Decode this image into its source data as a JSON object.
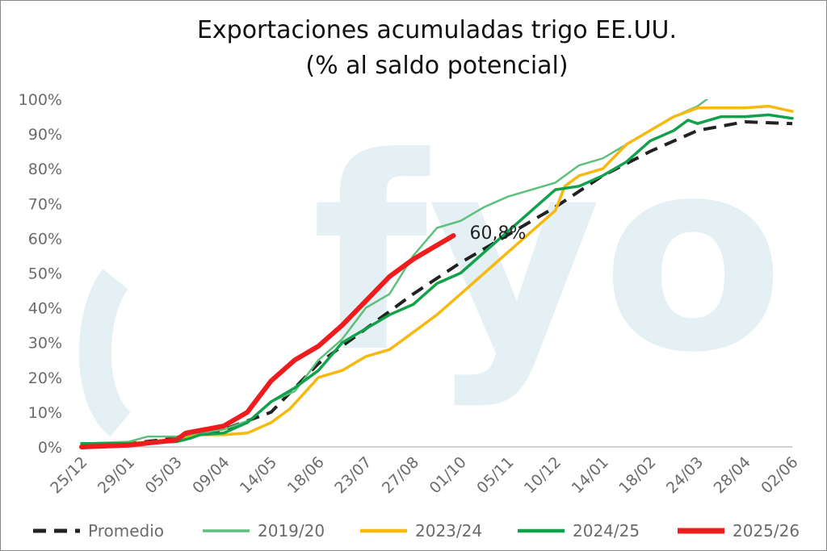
{
  "chart_data": {
    "type": "line",
    "title": "Exportaciones acumuladas trigo EE.UU.",
    "subtitle": "(% al saldo potencial)",
    "watermark": "fyo",
    "ylim": [
      0,
      100
    ],
    "y_ticks": [
      "0%",
      "10%",
      "20%",
      "30%",
      "40%",
      "50%",
      "60%",
      "70%",
      "80%",
      "90%",
      "100%"
    ],
    "x_ticks": [
      "25/12",
      "29/01",
      "05/03",
      "09/04",
      "14/05",
      "18/06",
      "23/07",
      "27/08",
      "01/10",
      "05/11",
      "10/12",
      "14/01",
      "18/02",
      "24/03",
      "28/04",
      "02/06"
    ],
    "x_range": [
      0,
      15
    ],
    "legend_position": "bottom",
    "annotation": "60,8%",
    "series": [
      {
        "name": "Promedio",
        "color": "#222222",
        "dashed": true,
        "width": 4,
        "x": [
          0,
          1,
          2,
          3,
          4,
          5,
          6,
          7,
          8,
          9,
          10,
          11,
          12,
          13,
          14,
          15
        ],
        "y": [
          0.5,
          1,
          2.5,
          5,
          10,
          24,
          34,
          44,
          53,
          61,
          69,
          78,
          85,
          91,
          93.5,
          93
        ]
      },
      {
        "name": "2019/20",
        "color": "#5cc07c",
        "dashed": false,
        "width": 2.5,
        "x": [
          0,
          1,
          1.4,
          2,
          3,
          3.6,
          4,
          4.5,
          5,
          5.5,
          6,
          6.5,
          7,
          7.5,
          8,
          8.5,
          9,
          9.5,
          10,
          10.5,
          11,
          11.5,
          12,
          12.5,
          13,
          13.3
        ],
        "y": [
          1,
          1.5,
          3,
          3,
          5,
          8,
          13,
          16,
          25,
          31,
          40,
          44,
          55,
          63,
          65,
          69,
          72,
          74,
          76,
          81,
          83,
          87,
          91,
          95,
          98,
          101
        ]
      },
      {
        "name": "2023/24",
        "color": "#f7b90f",
        "dashed": false,
        "width": 3.5,
        "x": [
          0,
          1,
          2,
          2.5,
          3,
          3.5,
          4,
          4.4,
          4.6,
          5,
          5.5,
          6,
          6.5,
          7,
          7.5,
          8,
          8.5,
          9,
          9.5,
          10,
          10.2,
          10.5,
          11,
          11.5,
          12,
          12.5,
          13,
          13.5,
          14,
          14.5,
          15
        ],
        "y": [
          0.5,
          1,
          2,
          3.5,
          3.5,
          4,
          7,
          11,
          14,
          20,
          22,
          26,
          28,
          33,
          38,
          44,
          50,
          56,
          62,
          68,
          75,
          78,
          80,
          87,
          91,
          95,
          97.5,
          97.5,
          97.5,
          98,
          96.5
        ]
      },
      {
        "name": "2024/25",
        "color": "#12a14b",
        "dashed": false,
        "width": 3.5,
        "x": [
          0,
          1,
          2,
          2.3,
          2.5,
          3,
          3.5,
          4,
          4.5,
          5,
          5.5,
          6,
          6.5,
          7,
          7.5,
          8,
          8.5,
          9,
          9.5,
          10,
          10.5,
          11,
          11.5,
          12,
          12.5,
          12.8,
          13,
          13.5,
          14,
          14.5,
          15
        ],
        "y": [
          1,
          1,
          1.5,
          2.5,
          3.5,
          4,
          7,
          13,
          17,
          22,
          30,
          34,
          38,
          41,
          47,
          50,
          56,
          62,
          68,
          74,
          75,
          78,
          82,
          88,
          91,
          94,
          93,
          95,
          95,
          95.5,
          94.5
        ]
      },
      {
        "name": "2025/26",
        "color": "#ee1c1c",
        "dashed": false,
        "width": 6,
        "x": [
          0,
          1,
          2,
          2.2,
          2.6,
          3,
          3.5,
          4,
          4.5,
          5,
          5.5,
          6,
          6.5,
          7,
          7.5,
          7.85
        ],
        "y": [
          0,
          0.5,
          2,
          4,
          5,
          6,
          10,
          19,
          25,
          29,
          35,
          42,
          49,
          54,
          58,
          60.8
        ]
      }
    ]
  }
}
